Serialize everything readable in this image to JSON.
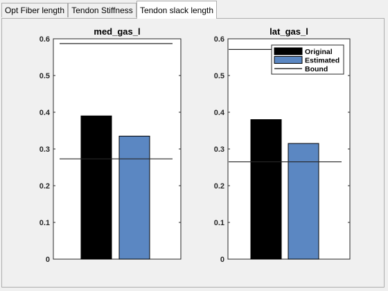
{
  "tabs": [
    {
      "label": "Opt Fiber length",
      "active": false
    },
    {
      "label": "Tendon Stiffness",
      "active": false
    },
    {
      "label": "Tendon slack length",
      "active": true
    }
  ],
  "chart_data": [
    {
      "type": "bar",
      "title": "med_gas_l",
      "categories": [
        "med_gas_l"
      ],
      "series": [
        {
          "name": "Original",
          "values": [
            0.39
          ],
          "color": "#000000"
        },
        {
          "name": "Estimated",
          "values": [
            0.335
          ],
          "color": "#5b87c2"
        }
      ],
      "bounds": [
        0.273,
        0.587
      ],
      "ylim": [
        0,
        0.6
      ],
      "yticks": [
        "0",
        "0.1",
        "0.2",
        "0.3",
        "0.4",
        "0.5",
        "0.6"
      ],
      "xlabel": "",
      "ylabel": ""
    },
    {
      "type": "bar",
      "title": "lat_gas_l",
      "categories": [
        "lat_gas_l"
      ],
      "series": [
        {
          "name": "Original",
          "values": [
            0.38
          ],
          "color": "#000000"
        },
        {
          "name": "Estimated",
          "values": [
            0.315
          ],
          "color": "#5b87c2"
        }
      ],
      "bounds": [
        0.265,
        0.571
      ],
      "ylim": [
        0,
        0.6
      ],
      "yticks": [
        "0",
        "0.1",
        "0.2",
        "0.3",
        "0.4",
        "0.5",
        "0.6"
      ],
      "xlabel": "",
      "ylabel": "",
      "legend": {
        "placement": "top-right",
        "entries": [
          {
            "label": "Original",
            "kind": "bar",
            "color": "#000000"
          },
          {
            "label": "Estimated",
            "kind": "bar",
            "color": "#5b87c2"
          },
          {
            "label": "Bound",
            "kind": "line",
            "color": "#000000"
          }
        ]
      }
    }
  ]
}
